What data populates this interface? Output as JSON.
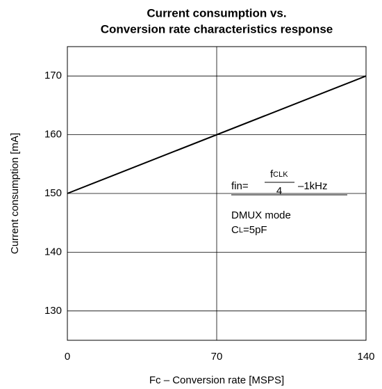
{
  "chart_data": {
    "type": "line",
    "title": [
      "Current consumption vs.",
      "Conversion rate characteristics response"
    ],
    "x_label": "Fc – Conversion rate  [MSPS]",
    "y_label": "Current consumption [mA]",
    "x": [
      0,
      140
    ],
    "series": [
      {
        "name": null,
        "color": "#000000",
        "values": [
          150,
          170
        ]
      }
    ],
    "xlim": [
      0,
      140
    ],
    "xticks": [
      0,
      70,
      140
    ],
    "ylim": [
      125,
      175
    ],
    "yticks": [
      130,
      140,
      150,
      160,
      170
    ],
    "grid": true,
    "annotations": [
      "fin=",
      "f",
      "CLK",
      "4",
      "–1kHz",
      "DMUX mode",
      "C",
      "L",
      "=5pF"
    ]
  }
}
